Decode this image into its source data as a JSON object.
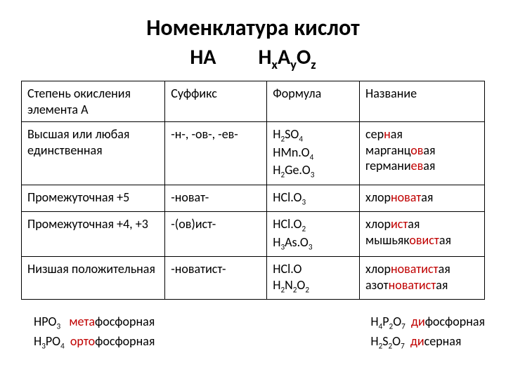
{
  "title": "Номенклатура кислот",
  "subtitle_left": "HA",
  "subtitle_right_html": "H<sub>x</sub>A<sub>y</sub>O<sub>z</sub>",
  "headers": {
    "c1": "Степень окисления элемента А",
    "c2": "Суффикс",
    "c3": "Формула",
    "c4": "Название"
  },
  "rows": [
    {
      "oxidation": "Высшая или любая единственная",
      "suffix": "-н-, -ов-, -ев-",
      "formula_html": "H<sub>2</sub>SO<sub>4</sub><br>HMn.O<sub>4</sub><br>H<sub>2</sub>Ge.O<sub>3</sub>",
      "name_html": "сер<span class=\"hl\">н</span>ая<br>марганц<span class=\"hl\">ов</span>ая<br>германи<span class=\"hl\">ев</span>ая"
    },
    {
      "oxidation": "Промежуточная +5",
      "suffix": "-новат-",
      "formula_html": "HCl.O<sub>3</sub>",
      "name_html": "хлор<span class=\"hl\">новат</span>ая"
    },
    {
      "oxidation": "Промежуточная +4, +3",
      "suffix": "-(ов)ист-",
      "formula_html": "HCl.O<sub>2</sub><br>H<sub>3</sub>As.O<sub>3</sub>",
      "name_html": "хлор<span class=\"hl\">ист</span>ая<br>мышьяк<span class=\"hl\">овист</span>ая"
    },
    {
      "oxidation": "Низшая положительная",
      "suffix": "-новатист-",
      "formula_html": "HCl.O<br>H<sub>2</sub>N<sub>2</sub>O<sub>2</sub>",
      "name_html": "хлор<span class=\"hl\">новатист</span>ая<br>азот<span class=\"hl\">новатист</span>ая"
    }
  ],
  "bottom_left": [
    {
      "formula_html": "HPO<sub>3</sub>",
      "name_html": "<span class=\"hl\">мета</span>фосфорная"
    },
    {
      "formula_html": "H<sub>3</sub>PO<sub>4</sub>",
      "name_html": "<span class=\"hl\">орто</span>фосфорная"
    }
  ],
  "bottom_right": [
    {
      "formula_html": "H<sub>4</sub>P<sub>2</sub>O<sub>7</sub>",
      "name_html": "<span class=\"hl\">ди</span>фосфорная"
    },
    {
      "formula_html": "H<sub>2</sub>S<sub>2</sub>O<sub>7</sub>",
      "name_html": "<span class=\"hl\">ди</span>серная"
    }
  ],
  "colors": {
    "highlight": "#c00000",
    "text": "#000000",
    "background": "#ffffff",
    "border": "#000000"
  },
  "fonts": {
    "title_size_pt": 24,
    "body_size_pt": 13,
    "family": "Calibri"
  }
}
